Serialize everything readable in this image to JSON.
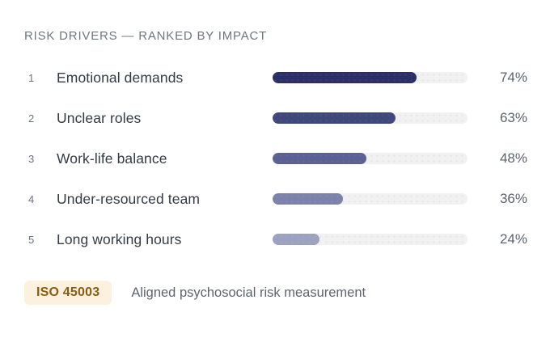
{
  "header": {
    "title": "RISK DRIVERS — RANKED BY IMPACT"
  },
  "chart_data": {
    "type": "bar",
    "orientation": "horizontal",
    "title": "RISK DRIVERS — RANKED BY IMPACT",
    "ranks": [
      1,
      2,
      3,
      4,
      5
    ],
    "categories": [
      "Emotional demands",
      "Unclear roles",
      "Work-life balance",
      "Under-resourced team",
      "Long working hours"
    ],
    "values": [
      74,
      63,
      48,
      36,
      24
    ],
    "value_suffix": "%",
    "xlim": [
      0,
      100
    ],
    "legend": "none",
    "grid": "off",
    "bar_colors": [
      "#2a3066",
      "#3f477e",
      "#5c6193",
      "#7c82a9",
      "#9da1c0"
    ],
    "track_color": "#f1f1f2"
  },
  "footer": {
    "badge_label": "ISO 45003",
    "badge_bg": "#fcf1de",
    "badge_text_color": "#8a5c13",
    "caption": "Aligned psychosocial risk measurement"
  }
}
